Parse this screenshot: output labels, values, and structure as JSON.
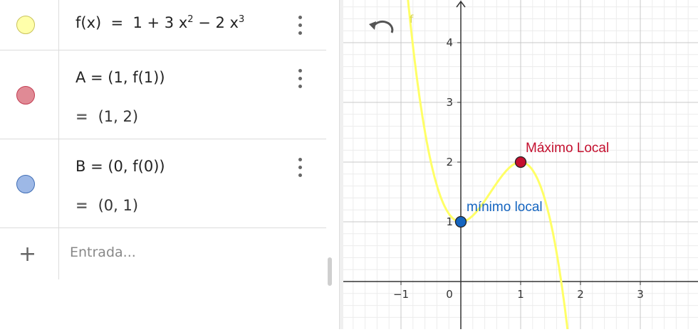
{
  "algebra": {
    "rows": [
      {
        "name": "f",
        "color": "#FFFFAA",
        "border": "#C9C25A",
        "expr_text": "f(x) = 1 + 3 x² − 2 x³"
      },
      {
        "name": "A",
        "color": "#E08A95",
        "border": "#C33D52",
        "expr": "A = (1, f(1))",
        "value": "(1, 2)"
      },
      {
        "name": "B",
        "color": "#9DB8E6",
        "border": "#3F6DB5",
        "expr": "B = (0, f(0))",
        "value": "(0, 1)"
      }
    ],
    "eq_sign": "=",
    "input_placeholder": "Entrada...",
    "add_symbol": "+"
  },
  "graph": {
    "x_ticks": [
      "-1",
      "0",
      "1",
      "2",
      "3"
    ],
    "y_ticks": [
      "1",
      "2",
      "3",
      "4"
    ],
    "x_range": [
      -1.9,
      3.9
    ],
    "y_range": [
      -0.8,
      4.6
    ],
    "curve_label": "f",
    "curve_color": "#FFFF66",
    "points": [
      {
        "name": "A",
        "x": 1,
        "y": 2,
        "label": "Máximo Local",
        "color": "#C4102F"
      },
      {
        "name": "B",
        "x": 0,
        "y": 1,
        "label": "mínimo local",
        "color": "#1565C0"
      }
    ]
  }
}
